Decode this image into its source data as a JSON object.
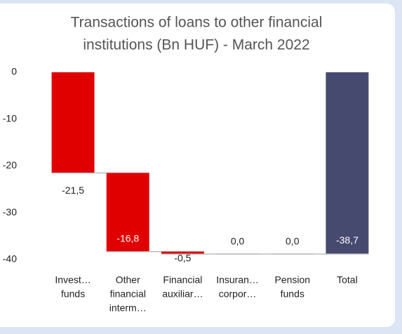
{
  "chart_data": {
    "type": "waterfall",
    "title": [
      "Transactions of loans to other financial",
      "institutions (Bn HUF) - March 2022"
    ],
    "categories": [
      [
        "Invest…",
        "funds"
      ],
      [
        "Other",
        "financial",
        "interm…"
      ],
      [
        "Financial",
        "auxiliar…"
      ],
      [
        "Insuran…",
        "corpor…"
      ],
      [
        "Pension",
        "funds"
      ],
      [
        "Total"
      ]
    ],
    "values": [
      -21.5,
      -16.8,
      -0.5,
      0.0,
      0.0,
      -38.7
    ],
    "value_labels": [
      "-21,5",
      "-16,8",
      "-0,5",
      "0,0",
      "0,0",
      "-38,7"
    ],
    "is_total": [
      false,
      false,
      false,
      false,
      false,
      true
    ],
    "color": "#e00000",
    "total_color": "#474a6f",
    "connector_color": "#b0b0b0",
    "ylim": [
      -40,
      0
    ],
    "yticks": [
      0,
      -10,
      -20,
      -30,
      -40
    ],
    "grid": false
  }
}
